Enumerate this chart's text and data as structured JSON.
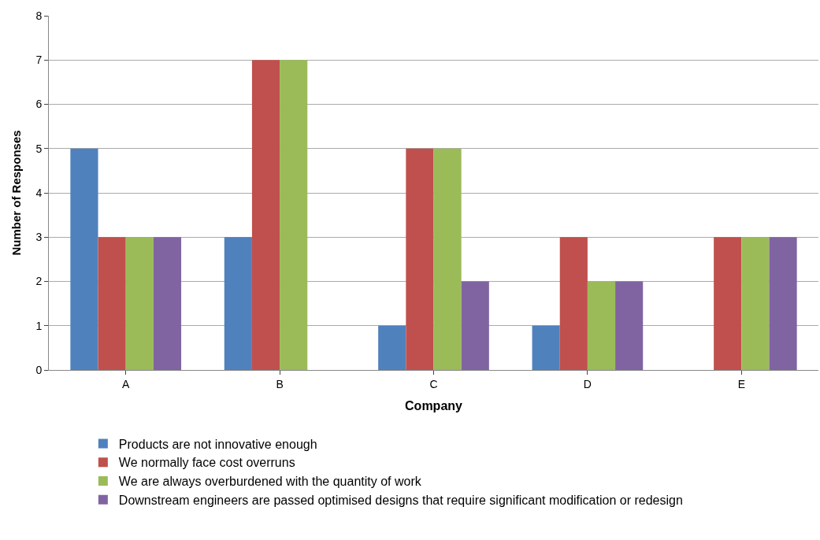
{
  "chart_data": {
    "type": "bar",
    "xlabel": "Company",
    "ylabel": "Number of Responses",
    "categories": [
      "A",
      "B",
      "C",
      "D",
      "E"
    ],
    "series": [
      {
        "name": "Products are not innovative enough",
        "color": "#4f81bd",
        "values": [
          5,
          3,
          1,
          1,
          0
        ]
      },
      {
        "name": "We normally face cost overruns",
        "color": "#c0504d",
        "values": [
          3,
          7,
          5,
          3,
          3
        ]
      },
      {
        "name": "We are always overburdened with the quantity of work",
        "color": "#9bbb59",
        "values": [
          3,
          7,
          5,
          2,
          3
        ]
      },
      {
        "name": "Downstream engineers are passed optimised designs that require significant modification or redesign",
        "color": "#8064a2",
        "values": [
          3,
          0,
          2,
          2,
          3
        ]
      }
    ],
    "ylim": [
      0,
      8
    ],
    "yticks": [
      0,
      1,
      2,
      3,
      4,
      5,
      6,
      7,
      8
    ],
    "grid": "y",
    "legend": "bottom"
  }
}
